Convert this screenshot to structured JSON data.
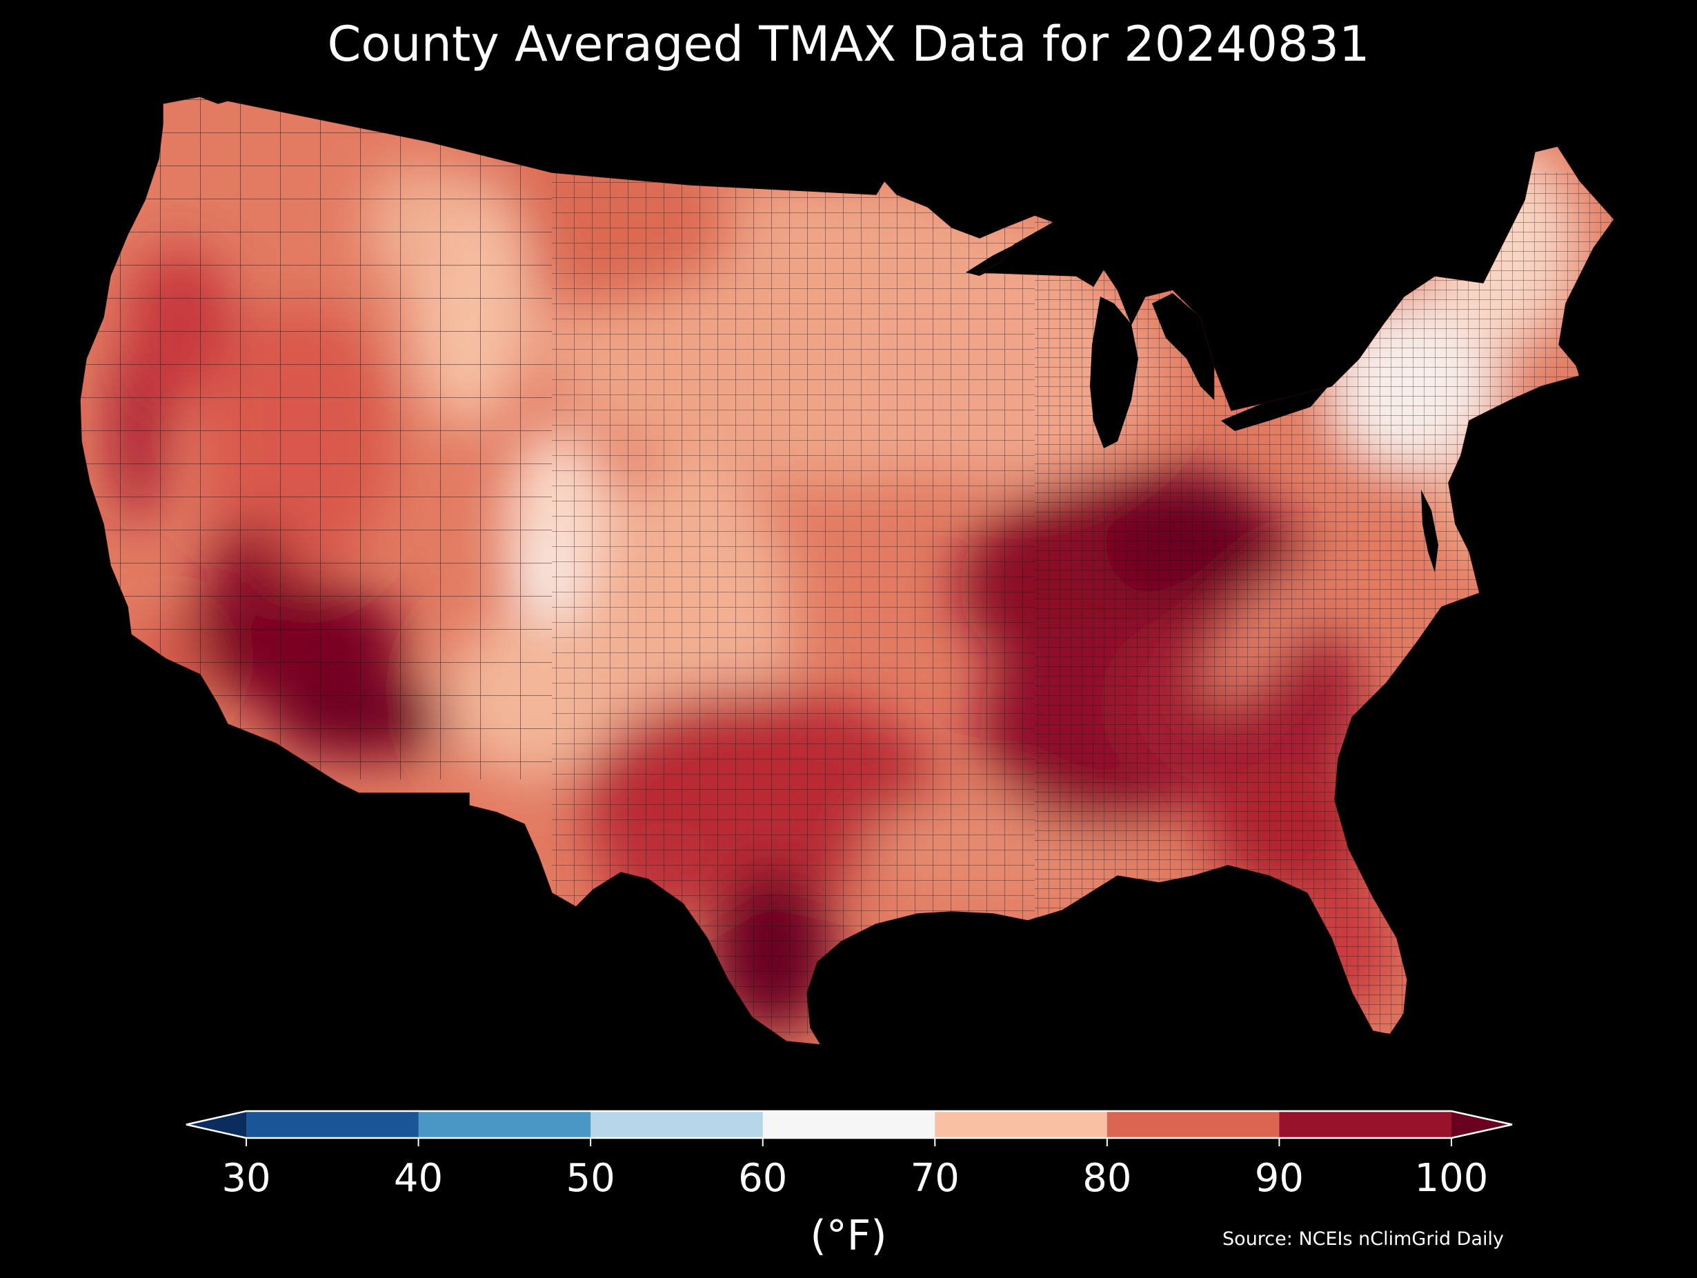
{
  "title": "County Averaged TMAX Data for 20240831",
  "colorbar": {
    "ticks": [
      "30",
      "40",
      "50",
      "60",
      "70",
      "80",
      "90",
      "100"
    ],
    "units_label": "(°F)",
    "extend": "both",
    "bins": [
      {
        "from": 30,
        "to": 40,
        "color": "#1a5597"
      },
      {
        "from": 40,
        "to": 50,
        "color": "#4897c5"
      },
      {
        "from": 50,
        "to": 60,
        "color": "#b5d7e9"
      },
      {
        "from": 60,
        "to": 70,
        "color": "#f6f6f6"
      },
      {
        "from": 70,
        "to": 80,
        "color": "#f9c0a3"
      },
      {
        "from": 80,
        "to": 90,
        "color": "#dc6552"
      },
      {
        "from": 90,
        "to": 100,
        "color": "#99122b"
      }
    ],
    "under_color": "#0b2c5e",
    "over_color": "#6a0020"
  },
  "source": "Source: NCEIs nClimGrid Daily",
  "map": {
    "region": "Contiguous United States",
    "unit": "county",
    "variable": "TMAX",
    "background_color": "#000000",
    "boundary_color": "#2a0a0a"
  }
}
